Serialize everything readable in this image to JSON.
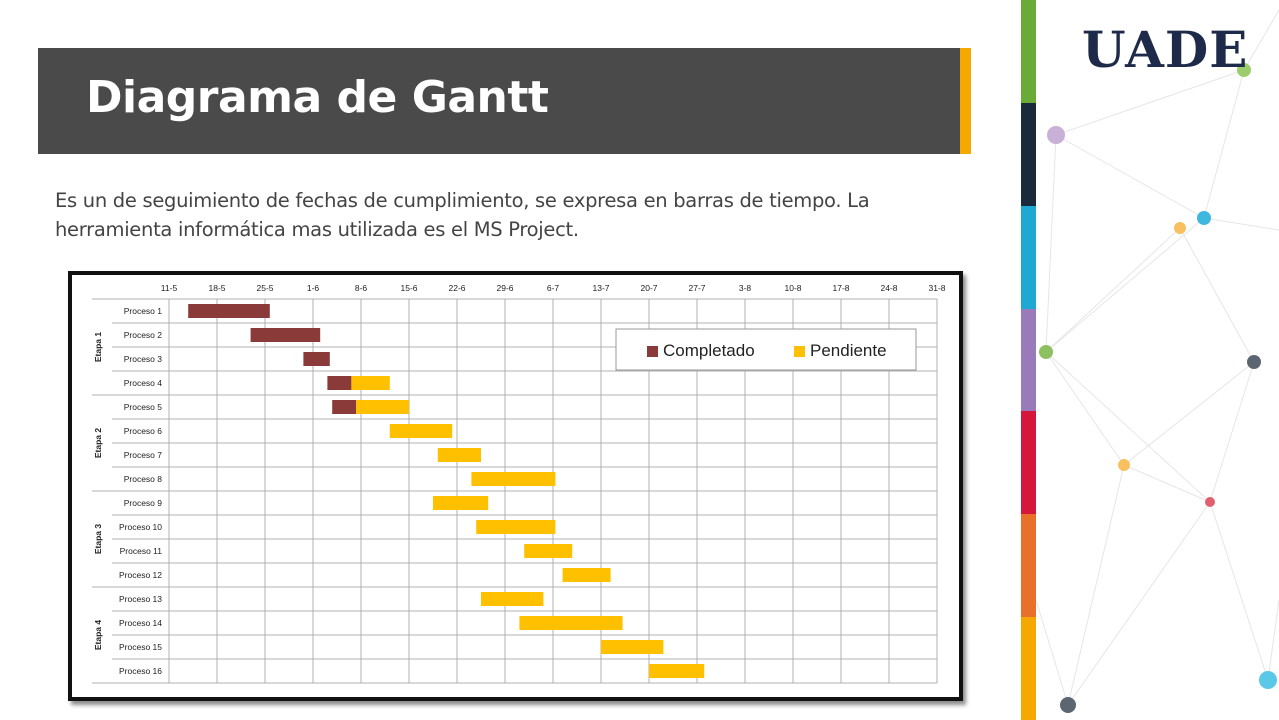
{
  "slide": {
    "title": "Diagrama de Gantt",
    "body": "Es un de seguimiento de fechas de cumplimiento, se expresa en barras de tiempo. La herramienta informática mas utilizada es el MS Project.",
    "logo_text": "UADE",
    "accent_color": "#f5a800",
    "title_bar_color": "#4a4a4a",
    "strip_colors": [
      "#6aaa36",
      "#1a2a3a",
      "#1fa8d4",
      "#9a7ab8",
      "#d4173a",
      "#e8702a",
      "#f5a800"
    ]
  },
  "chart_data": {
    "type": "gantt",
    "x_tick_labels": [
      "11-5",
      "18-5",
      "25-5",
      "1-6",
      "8-6",
      "15-6",
      "22-6",
      "29-6",
      "6-7",
      "13-7",
      "20-7",
      "27-7",
      "3-8",
      "10-8",
      "17-8",
      "24-8",
      "31-8"
    ],
    "legend": [
      {
        "name": "Completado",
        "color": "#8b3a3a"
      },
      {
        "name": "Pendiente",
        "color": "#ffc000"
      }
    ],
    "legend_position": "top-right",
    "grid": true,
    "groups": [
      {
        "label": "Etapa 1",
        "rows": [
          0,
          3
        ]
      },
      {
        "label": "Etapa 2",
        "rows": [
          4,
          7
        ]
      },
      {
        "label": "Etapa 3",
        "rows": [
          8,
          11
        ]
      },
      {
        "label": "Etapa 4",
        "rows": [
          12,
          15
        ]
      }
    ],
    "tasks": [
      {
        "name": "Proceso 1",
        "start_week": 0.4,
        "completed_weeks": 1.7,
        "pending_weeks": 0
      },
      {
        "name": "Proceso 2",
        "start_week": 1.7,
        "completed_weeks": 1.45,
        "pending_weeks": 0
      },
      {
        "name": "Proceso 3",
        "start_week": 2.8,
        "completed_weeks": 0.55,
        "pending_weeks": 0
      },
      {
        "name": "Proceso 4",
        "start_week": 3.3,
        "completed_weeks": 0.5,
        "pending_weeks": 0.8
      },
      {
        "name": "Proceso 5",
        "start_week": 3.4,
        "completed_weeks": 0.5,
        "pending_weeks": 1.1
      },
      {
        "name": "Proceso 6",
        "start_week": 4.6,
        "completed_weeks": 0,
        "pending_weeks": 1.3
      },
      {
        "name": "Proceso 7",
        "start_week": 5.6,
        "completed_weeks": 0,
        "pending_weeks": 0.9
      },
      {
        "name": "Proceso 8",
        "start_week": 6.3,
        "completed_weeks": 0,
        "pending_weeks": 1.75
      },
      {
        "name": "Proceso 9",
        "start_week": 5.5,
        "completed_weeks": 0,
        "pending_weeks": 1.15
      },
      {
        "name": "Proceso 10",
        "start_week": 6.4,
        "completed_weeks": 0,
        "pending_weeks": 1.65
      },
      {
        "name": "Proceso 11",
        "start_week": 7.4,
        "completed_weeks": 0,
        "pending_weeks": 1.0
      },
      {
        "name": "Proceso 12",
        "start_week": 8.2,
        "completed_weeks": 0,
        "pending_weeks": 1.0
      },
      {
        "name": "Proceso 13",
        "start_week": 6.5,
        "completed_weeks": 0,
        "pending_weeks": 1.3
      },
      {
        "name": "Proceso 14",
        "start_week": 7.3,
        "completed_weeks": 0,
        "pending_weeks": 2.15
      },
      {
        "name": "Proceso 15",
        "start_week": 9.0,
        "completed_weeks": 0,
        "pending_weeks": 1.3
      },
      {
        "name": "Proceso 16",
        "start_week": 10.0,
        "completed_weeks": 0,
        "pending_weeks": 1.15
      }
    ]
  }
}
